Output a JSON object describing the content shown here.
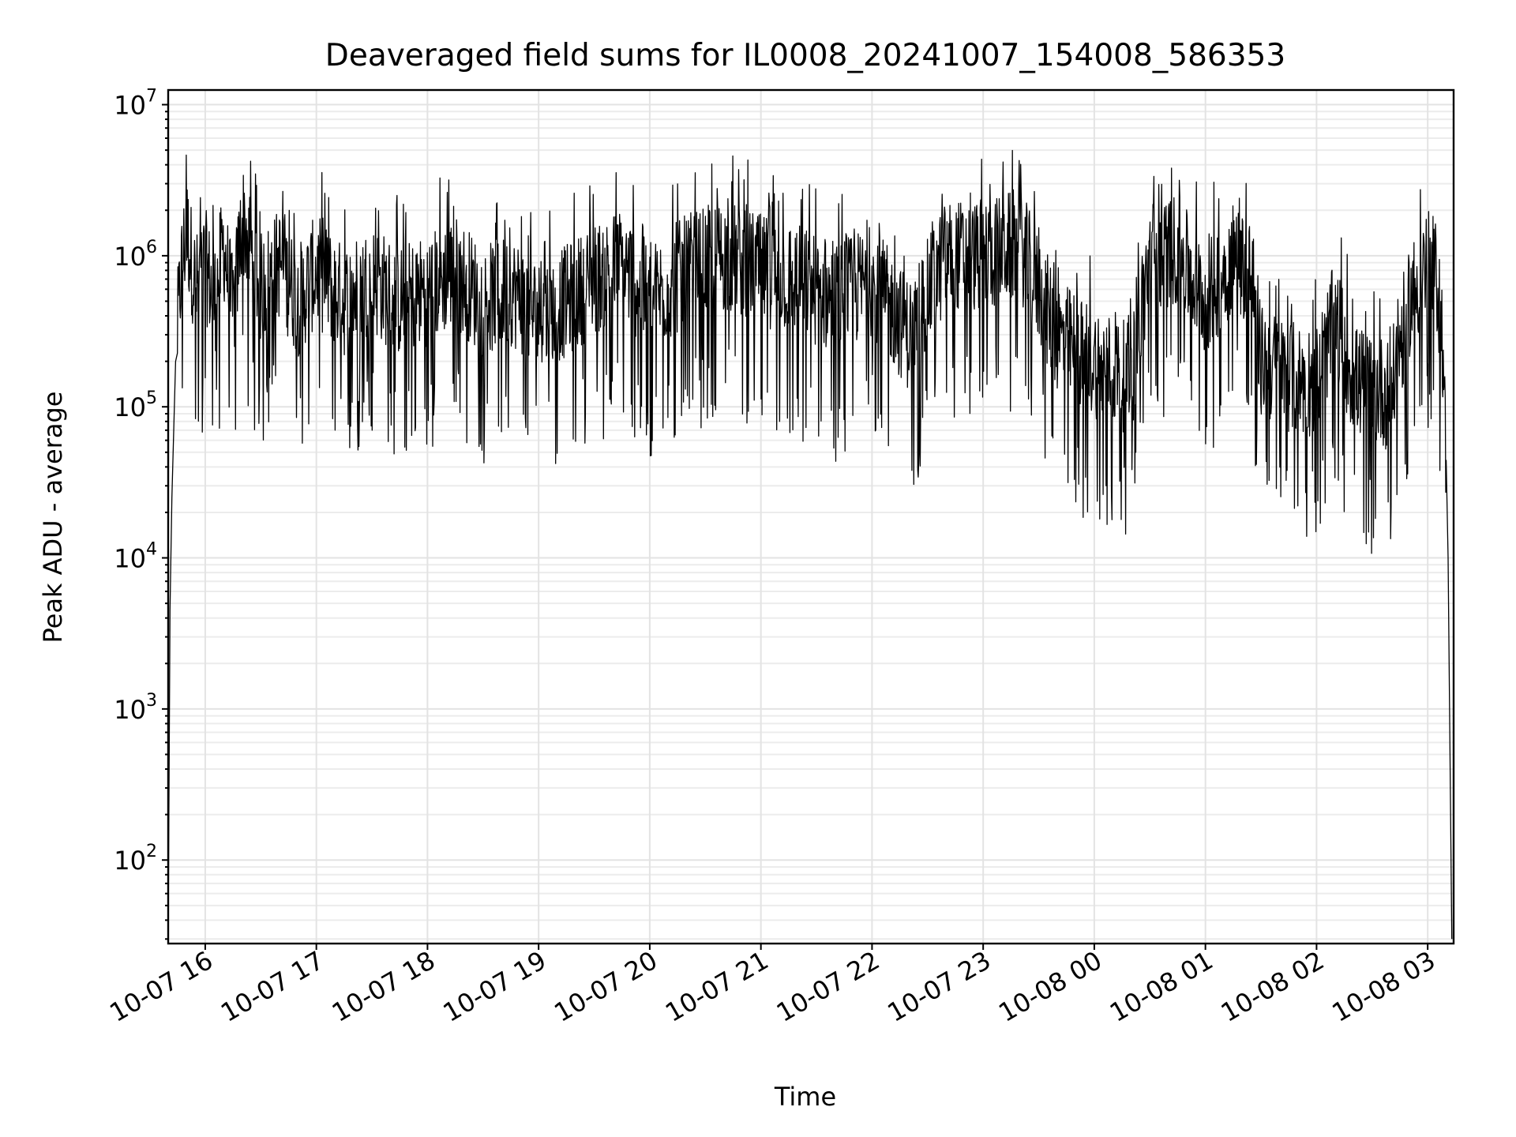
{
  "chart_data": {
    "type": "line",
    "title": "Deaveraged field sums for IL0008_20241007_154008_586353",
    "xlabel": "Time",
    "ylabel": "Peak ADU - average",
    "x_range": [
      "2024-10-07 15:40",
      "2024-10-08 03:14"
    ],
    "ylim": [
      28,
      12500000
    ],
    "yscale": "log",
    "grid": true,
    "x_ticks": [
      {
        "label": "10-07 16",
        "value": "2024-10-07 16:00"
      },
      {
        "label": "10-07 17",
        "value": "2024-10-07 17:00"
      },
      {
        "label": "10-07 18",
        "value": "2024-10-07 18:00"
      },
      {
        "label": "10-07 19",
        "value": "2024-10-07 19:00"
      },
      {
        "label": "10-07 20",
        "value": "2024-10-07 20:00"
      },
      {
        "label": "10-07 21",
        "value": "2024-10-07 21:00"
      },
      {
        "label": "10-07 22",
        "value": "2024-10-07 22:00"
      },
      {
        "label": "10-07 23",
        "value": "2024-10-07 23:00"
      },
      {
        "label": "10-08 00",
        "value": "2024-10-08 00:00"
      },
      {
        "label": "10-08 01",
        "value": "2024-10-08 01:00"
      },
      {
        "label": "10-08 02",
        "value": "2024-10-08 02:00"
      },
      {
        "label": "10-08 03",
        "value": "2024-10-08 03:00"
      }
    ],
    "y_ticks": [
      {
        "base": "10",
        "exp": "2",
        "value": 100
      },
      {
        "base": "10",
        "exp": "3",
        "value": 1000
      },
      {
        "base": "10",
        "exp": "4",
        "value": 10000
      },
      {
        "base": "10",
        "exp": "5",
        "value": 100000
      },
      {
        "base": "10",
        "exp": "6",
        "value": 1000000
      },
      {
        "base": "10",
        "exp": "7",
        "value": 10000000
      }
    ],
    "series": [
      {
        "color": "#000000",
        "points": [
          [
            "2024-10-07 15:40",
            30
          ],
          [
            "2024-10-07 15:41",
            4500
          ],
          [
            "2024-10-07 15:42",
            25000
          ],
          [
            "2024-10-07 15:44",
            200000
          ],
          [
            "2024-10-07 15:47",
            800000
          ],
          [
            "2024-10-07 15:50",
            1500000
          ],
          [
            "2024-10-07 15:55",
            600000
          ],
          [
            "2024-10-07 16:00",
            900000
          ],
          [
            "2024-10-07 16:05",
            500000
          ],
          [
            "2024-10-07 16:10",
            1200000
          ],
          [
            "2024-10-07 16:15",
            400000
          ],
          [
            "2024-10-07 16:20",
            1800000
          ],
          [
            "2024-10-07 16:30",
            600000
          ],
          [
            "2024-10-07 16:40",
            900000
          ],
          [
            "2024-10-07 16:50",
            500000
          ],
          [
            "2024-10-07 17:00",
            800000
          ],
          [
            "2024-10-07 17:15",
            500000
          ],
          [
            "2024-10-07 17:30",
            700000
          ],
          [
            "2024-10-07 17:45",
            500000
          ],
          [
            "2024-10-07 18:00",
            600000
          ],
          [
            "2024-10-07 18:15",
            800000
          ],
          [
            "2024-10-07 18:30",
            500000
          ],
          [
            "2024-10-07 18:45",
            600000
          ],
          [
            "2024-10-07 19:00",
            400000
          ],
          [
            "2024-10-07 19:15",
            500000
          ],
          [
            "2024-10-07 19:30",
            700000
          ],
          [
            "2024-10-07 19:45",
            900000
          ],
          [
            "2024-10-07 20:00",
            500000
          ],
          [
            "2024-10-07 20:20",
            800000
          ],
          [
            "2024-10-07 20:40",
            1000000
          ],
          [
            "2024-10-07 21:00",
            800000
          ],
          [
            "2024-10-07 21:20",
            700000
          ],
          [
            "2024-10-07 21:40",
            500000
          ],
          [
            "2024-10-07 22:00",
            700000
          ],
          [
            "2024-10-07 22:20",
            300000
          ],
          [
            "2024-10-07 22:40",
            1000000
          ],
          [
            "2024-10-07 23:00",
            1000000
          ],
          [
            "2024-10-07 23:20",
            1200000
          ],
          [
            "2024-10-07 23:40",
            300000
          ],
          [
            "2024-10-08 00:00",
            200000
          ],
          [
            "2024-10-08 00:20",
            150000
          ],
          [
            "2024-10-08 00:30",
            1000000
          ],
          [
            "2024-10-08 00:45",
            1100000
          ],
          [
            "2024-10-08 01:00",
            500000
          ],
          [
            "2024-10-08 01:15",
            1000000
          ],
          [
            "2024-10-08 01:25",
            800000
          ],
          [
            "2024-10-08 01:30",
            200000
          ],
          [
            "2024-10-08 01:50",
            150000
          ],
          [
            "2024-10-08 02:00",
            150000
          ],
          [
            "2024-10-08 02:10",
            400000
          ],
          [
            "2024-10-08 02:20",
            150000
          ],
          [
            "2024-10-08 02:40",
            120000
          ],
          [
            "2024-10-08 02:50",
            500000
          ],
          [
            "2024-10-08 03:00",
            900000
          ],
          [
            "2024-10-08 03:05",
            700000
          ],
          [
            "2024-10-08 03:08",
            300000
          ],
          [
            "2024-10-08 03:11",
            10000
          ],
          [
            "2024-10-08 03:13",
            30
          ]
        ]
      }
    ]
  }
}
